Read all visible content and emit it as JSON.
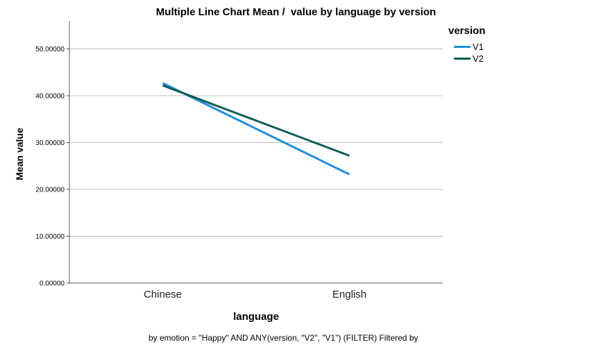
{
  "chart_data": {
    "type": "line",
    "title": "Multiple Line Chart Mean /  value by language by version",
    "xlabel": "language",
    "ylabel": "Mean value",
    "categories": [
      "Chinese",
      "English"
    ],
    "ylim": [
      0,
      56
    ],
    "yticks": [
      0,
      10,
      20,
      30,
      40,
      50
    ],
    "ytick_labels": [
      "0.00000",
      "10.00000",
      "20.00000",
      "30.00000",
      "40.00000",
      "50.00000"
    ],
    "grid": true,
    "legend_title": "version",
    "legend_position": "top-right",
    "series": [
      {
        "name": "V1",
        "color": "#1f8fe0",
        "values": [
          42.7,
          23.2
        ]
      },
      {
        "name": "V2",
        "color": "#0d5c55",
        "values": [
          42.2,
          27.2
        ]
      }
    ],
    "footnote": "by emotion = \"Happy\" AND ANY(version, \"V2\", \"V1\") (FILTER) Filtered by"
  }
}
